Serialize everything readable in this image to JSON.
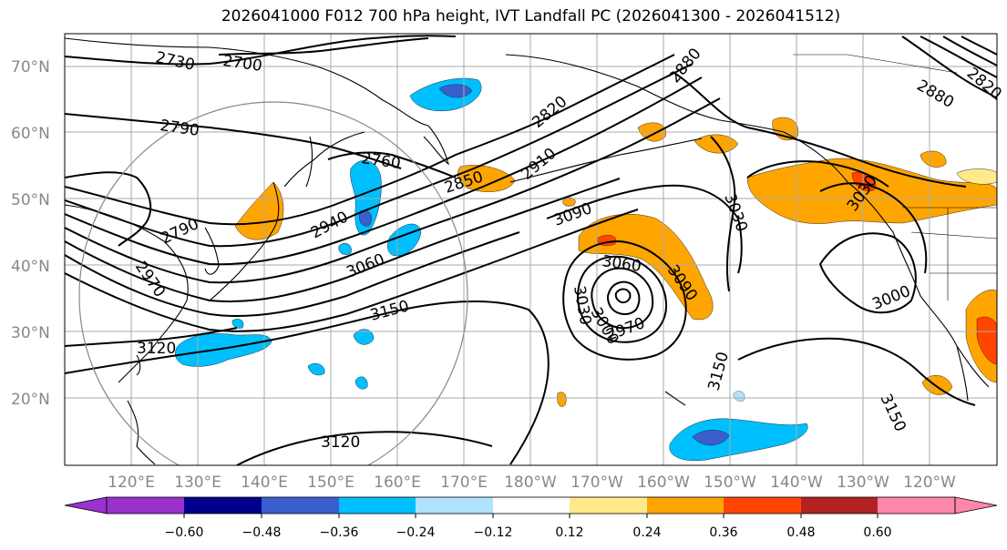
{
  "title": "2026041000 F012 700 hPa height, IVT Landfall PC (2026041300 - 2026041512)",
  "map": {
    "projection": "plate-carree",
    "lon_range_east_180": [
      110,
      250
    ],
    "lat_range": [
      10,
      75
    ],
    "lat_labels": [
      "70°N",
      "60°N",
      "50°N",
      "40°N",
      "30°N",
      "20°N"
    ],
    "lon_labels": [
      "120°E",
      "130°E",
      "140°E",
      "150°E",
      "160°E",
      "170°E",
      "180°W",
      "170°W",
      "160°W",
      "150°W",
      "140°W",
      "130°W",
      "120°W"
    ],
    "height_contour_labels": [
      "2730",
      "2700",
      "2790",
      "2820",
      "2880",
      "2880",
      "2820",
      "2760",
      "2850",
      "2910",
      "3090",
      "3030",
      "2790",
      "2940",
      "3060",
      "3150",
      "2970",
      "3060",
      "3090",
      "3030",
      "3000",
      "2970",
      "3000",
      "3120",
      "3150",
      "3120",
      "3150",
      "3030"
    ],
    "height_contour_color": "#000000",
    "coastline_color": "#000000",
    "grid_color": "#aaaaaa",
    "circle_color": "#888888"
  },
  "colorbar": {
    "ticks": [
      "−0.60",
      "−0.48",
      "−0.36",
      "−0.24",
      "−0.12",
      "0.12",
      "0.24",
      "0.36",
      "0.48",
      "0.60"
    ],
    "colors": [
      "#9932cc",
      "#00008b",
      "#3a5fcd",
      "#00bfff",
      "#b0e2ff",
      "#ffffff",
      "#ffe98a",
      "#ffa500",
      "#ff4500",
      "#b22222",
      "#ff88aa"
    ]
  },
  "shading_colors": {
    "neg_light": "#b0e2ff",
    "neg_mid": "#00bfff",
    "neg_strong": "#3a5fcd",
    "neg_dark": "#00008b",
    "pos_light": "#ffe98a",
    "pos_mid": "#ffa500",
    "pos_strong": "#ff4500",
    "pos_dark": "#b22222"
  }
}
